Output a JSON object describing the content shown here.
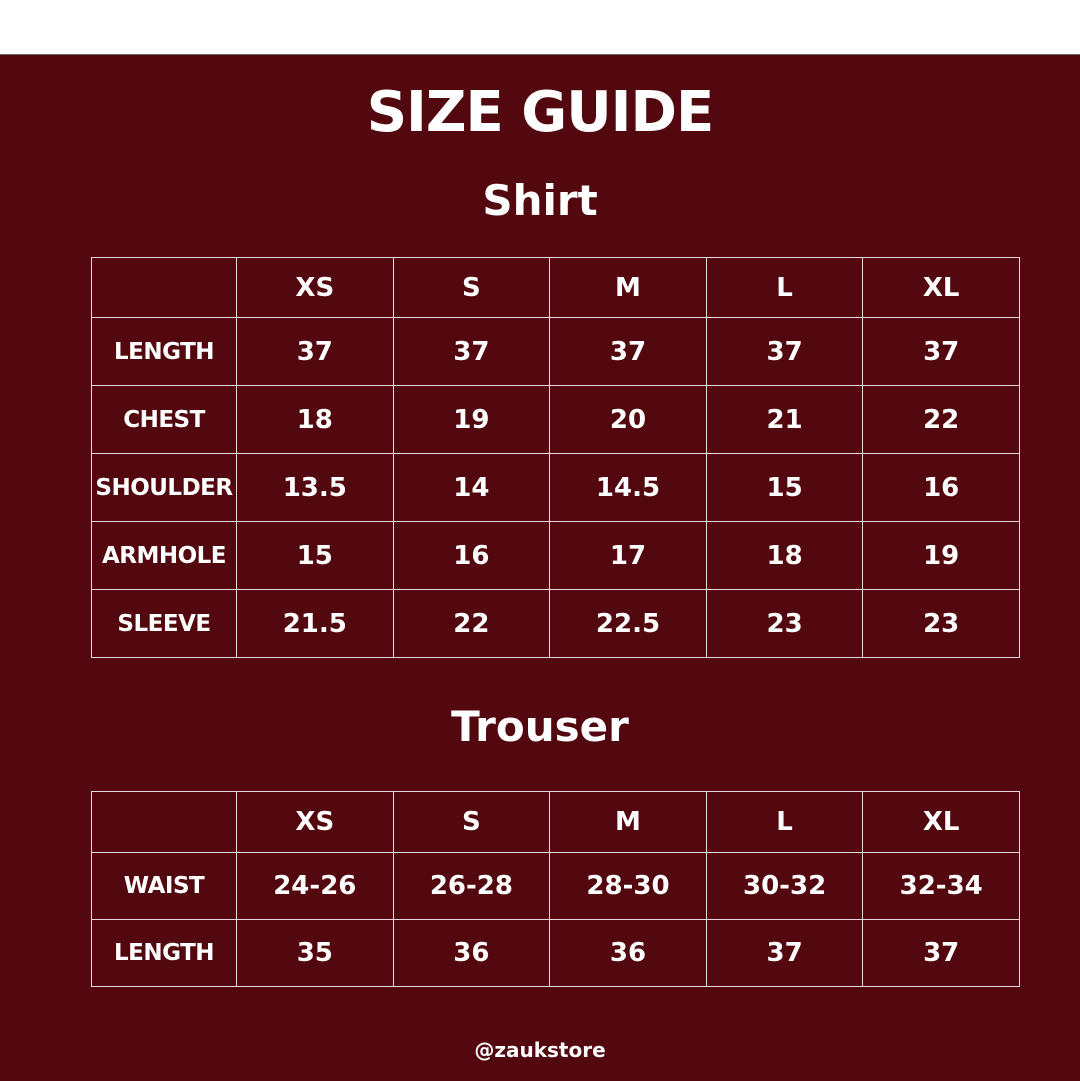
{
  "title": "SIZE GUIDE",
  "shirt": {
    "title": "Shirt",
    "sizes": [
      "XS",
      "S",
      "M",
      "L",
      "XL"
    ],
    "rows": [
      {
        "label": "LENGTH",
        "values": [
          "37",
          "37",
          "37",
          "37",
          "37"
        ]
      },
      {
        "label": "CHEST",
        "values": [
          "18",
          "19",
          "20",
          "21",
          "22"
        ]
      },
      {
        "label": "SHOULDER",
        "values": [
          "13.5",
          "14",
          "14.5",
          "15",
          "16"
        ]
      },
      {
        "label": "ARMHOLE",
        "values": [
          "15",
          "16",
          "17",
          "18",
          "19"
        ]
      },
      {
        "label": "SLEEVE",
        "values": [
          "21.5",
          "22",
          "22.5",
          "23",
          "23"
        ]
      }
    ]
  },
  "trouser": {
    "title": "Trouser",
    "sizes": [
      "XS",
      "S",
      "M",
      "L",
      "XL"
    ],
    "rows": [
      {
        "label": "WAIST",
        "values": [
          "24-26",
          "26-28",
          "28-30",
          "30-32",
          "32-34"
        ]
      },
      {
        "label": "LENGTH",
        "values": [
          "35",
          "36",
          "36",
          "37",
          "37"
        ]
      }
    ]
  },
  "handle": "@zaukstore",
  "colors": {
    "background": "#52080e",
    "text": "#ffffff"
  }
}
